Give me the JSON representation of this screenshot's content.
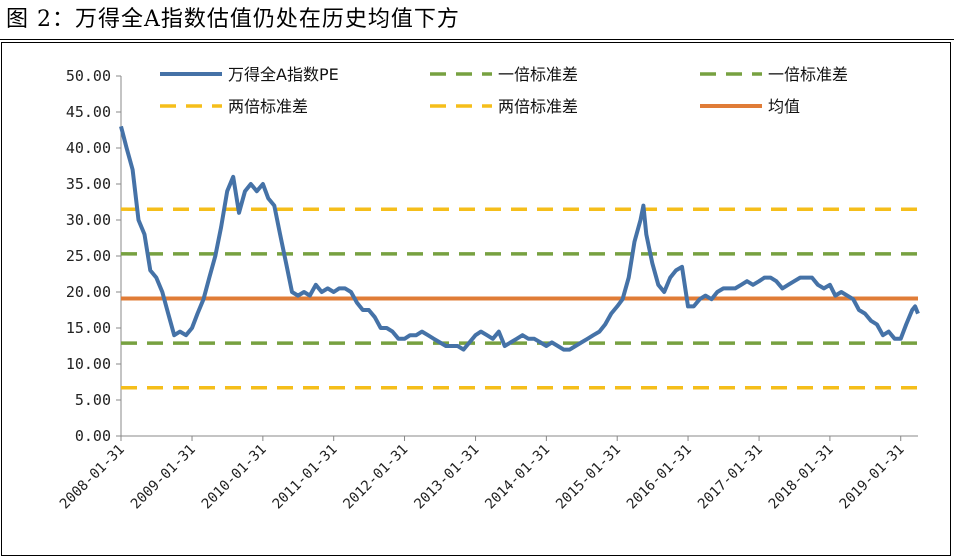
{
  "figure": {
    "title": "图 2：万得全A指数估值仍处在历史均值下方"
  },
  "chart_data": {
    "type": "line",
    "ylim": [
      0,
      50
    ],
    "yticks": [
      "0.00",
      "5.00",
      "10.00",
      "15.00",
      "20.00",
      "25.00",
      "30.00",
      "35.00",
      "40.00",
      "45.00",
      "50.00"
    ],
    "xticks": [
      "2008-01-31",
      "2009-01-31",
      "2010-01-31",
      "2011-01-31",
      "2012-01-31",
      "2013-01-31",
      "2014-01-31",
      "2015-01-31",
      "2016-01-31",
      "2017-01-31",
      "2018-01-31",
      "2019-01-31"
    ],
    "x_range": [
      "2008-01-31",
      "2019-04-30"
    ],
    "legend_position": "top",
    "grid": false,
    "series": [
      {
        "name": "万得全A指数PE",
        "color": "#4572A7",
        "style": "solid",
        "points": [
          [
            "2008-01-31",
            43.0
          ],
          [
            "2008-02-29",
            40.0
          ],
          [
            "2008-03-31",
            37.0
          ],
          [
            "2008-04-30",
            30.0
          ],
          [
            "2008-05-31",
            28.0
          ],
          [
            "2008-06-30",
            23.0
          ],
          [
            "2008-07-31",
            22.0
          ],
          [
            "2008-08-31",
            20.0
          ],
          [
            "2008-09-30",
            17.0
          ],
          [
            "2008-10-31",
            14.0
          ],
          [
            "2008-11-30",
            14.5
          ],
          [
            "2008-12-31",
            14.0
          ],
          [
            "2009-01-31",
            15.0
          ],
          [
            "2009-02-28",
            17.0
          ],
          [
            "2009-03-31",
            19.0
          ],
          [
            "2009-04-30",
            22.0
          ],
          [
            "2009-05-31",
            25.0
          ],
          [
            "2009-06-30",
            29.0
          ],
          [
            "2009-07-31",
            34.0
          ],
          [
            "2009-08-31",
            36.0
          ],
          [
            "2009-09-30",
            31.0
          ],
          [
            "2009-10-31",
            34.0
          ],
          [
            "2009-11-30",
            35.0
          ],
          [
            "2009-12-31",
            34.0
          ],
          [
            "2010-01-31",
            35.0
          ],
          [
            "2010-02-28",
            33.0
          ],
          [
            "2010-03-31",
            32.0
          ],
          [
            "2010-04-30",
            28.0
          ],
          [
            "2010-05-31",
            24.0
          ],
          [
            "2010-06-30",
            20.0
          ],
          [
            "2010-07-31",
            19.5
          ],
          [
            "2010-08-31",
            20.0
          ],
          [
            "2010-09-30",
            19.5
          ],
          [
            "2010-10-31",
            21.0
          ],
          [
            "2010-11-30",
            20.0
          ],
          [
            "2010-12-31",
            20.5
          ],
          [
            "2011-01-31",
            20.0
          ],
          [
            "2011-02-28",
            20.5
          ],
          [
            "2011-03-31",
            20.5
          ],
          [
            "2011-04-30",
            20.0
          ],
          [
            "2011-05-31",
            18.5
          ],
          [
            "2011-06-30",
            17.5
          ],
          [
            "2011-07-31",
            17.5
          ],
          [
            "2011-08-31",
            16.5
          ],
          [
            "2011-09-30",
            15.0
          ],
          [
            "2011-10-31",
            15.0
          ],
          [
            "2011-11-30",
            14.5
          ],
          [
            "2011-12-31",
            13.5
          ],
          [
            "2012-01-31",
            13.5
          ],
          [
            "2012-02-29",
            14.0
          ],
          [
            "2012-03-31",
            14.0
          ],
          [
            "2012-04-30",
            14.5
          ],
          [
            "2012-05-31",
            14.0
          ],
          [
            "2012-06-30",
            13.5
          ],
          [
            "2012-07-31",
            13.0
          ],
          [
            "2012-08-31",
            12.5
          ],
          [
            "2012-09-30",
            12.5
          ],
          [
            "2012-10-31",
            12.5
          ],
          [
            "2012-11-30",
            12.0
          ],
          [
            "2012-12-31",
            13.0
          ],
          [
            "2013-01-31",
            14.0
          ],
          [
            "2013-02-28",
            14.5
          ],
          [
            "2013-03-31",
            14.0
          ],
          [
            "2013-04-30",
            13.5
          ],
          [
            "2013-05-31",
            14.5
          ],
          [
            "2013-06-30",
            12.5
          ],
          [
            "2013-07-31",
            13.0
          ],
          [
            "2013-08-31",
            13.5
          ],
          [
            "2013-09-30",
            14.0
          ],
          [
            "2013-10-31",
            13.5
          ],
          [
            "2013-11-30",
            13.5
          ],
          [
            "2013-12-31",
            13.0
          ],
          [
            "2014-01-31",
            12.5
          ],
          [
            "2014-02-28",
            13.0
          ],
          [
            "2014-03-31",
            12.5
          ],
          [
            "2014-04-30",
            12.0
          ],
          [
            "2014-05-31",
            12.0
          ],
          [
            "2014-06-30",
            12.5
          ],
          [
            "2014-07-31",
            13.0
          ],
          [
            "2014-08-31",
            13.5
          ],
          [
            "2014-09-30",
            14.0
          ],
          [
            "2014-10-31",
            14.5
          ],
          [
            "2014-11-30",
            15.5
          ],
          [
            "2014-12-31",
            17.0
          ],
          [
            "2015-01-31",
            18.0
          ],
          [
            "2015-02-28",
            19.0
          ],
          [
            "2015-03-31",
            22.0
          ],
          [
            "2015-04-30",
            27.0
          ],
          [
            "2015-05-31",
            30.0
          ],
          [
            "2015-06-15",
            32.0
          ],
          [
            "2015-06-30",
            28.0
          ],
          [
            "2015-07-31",
            24.0
          ],
          [
            "2015-08-31",
            21.0
          ],
          [
            "2015-09-30",
            20.0
          ],
          [
            "2015-10-31",
            22.0
          ],
          [
            "2015-11-30",
            23.0
          ],
          [
            "2015-12-31",
            23.5
          ],
          [
            "2016-01-31",
            18.0
          ],
          [
            "2016-02-29",
            18.0
          ],
          [
            "2016-03-31",
            19.0
          ],
          [
            "2016-04-30",
            19.5
          ],
          [
            "2016-05-31",
            19.0
          ],
          [
            "2016-06-30",
            20.0
          ],
          [
            "2016-07-31",
            20.5
          ],
          [
            "2016-08-31",
            20.5
          ],
          [
            "2016-09-30",
            20.5
          ],
          [
            "2016-10-31",
            21.0
          ],
          [
            "2016-11-30",
            21.5
          ],
          [
            "2016-12-31",
            21.0
          ],
          [
            "2017-01-31",
            21.5
          ],
          [
            "2017-02-28",
            22.0
          ],
          [
            "2017-03-31",
            22.0
          ],
          [
            "2017-04-30",
            21.5
          ],
          [
            "2017-05-31",
            20.5
          ],
          [
            "2017-06-30",
            21.0
          ],
          [
            "2017-07-31",
            21.5
          ],
          [
            "2017-08-31",
            22.0
          ],
          [
            "2017-09-30",
            22.0
          ],
          [
            "2017-10-31",
            22.0
          ],
          [
            "2017-11-30",
            21.0
          ],
          [
            "2017-12-31",
            20.5
          ],
          [
            "2018-01-31",
            21.0
          ],
          [
            "2018-02-28",
            19.5
          ],
          [
            "2018-03-31",
            20.0
          ],
          [
            "2018-04-30",
            19.5
          ],
          [
            "2018-05-31",
            19.0
          ],
          [
            "2018-06-30",
            17.5
          ],
          [
            "2018-07-31",
            17.0
          ],
          [
            "2018-08-31",
            16.0
          ],
          [
            "2018-09-30",
            15.5
          ],
          [
            "2018-10-31",
            14.0
          ],
          [
            "2018-11-30",
            14.5
          ],
          [
            "2018-12-31",
            13.5
          ],
          [
            "2019-01-31",
            13.5
          ],
          [
            "2019-02-28",
            15.5
          ],
          [
            "2019-03-31",
            17.5
          ],
          [
            "2019-04-15",
            18.0
          ],
          [
            "2019-04-30",
            17.0
          ]
        ]
      },
      {
        "name": "一倍标准差",
        "color": "#77A140",
        "style": "dashed",
        "constant": 25.3
      },
      {
        "name": "一倍标准差",
        "color": "#77A140",
        "style": "dashed",
        "constant": 12.9
      },
      {
        "name": "两倍标准差",
        "color": "#F5BE1A",
        "style": "dashed",
        "constant": 31.5
      },
      {
        "name": "两倍标准差",
        "color": "#F5BE1A",
        "style": "dashed",
        "constant": 6.7
      },
      {
        "name": "均值",
        "color": "#E07C37",
        "style": "solid",
        "constant": 19.1
      }
    ]
  }
}
